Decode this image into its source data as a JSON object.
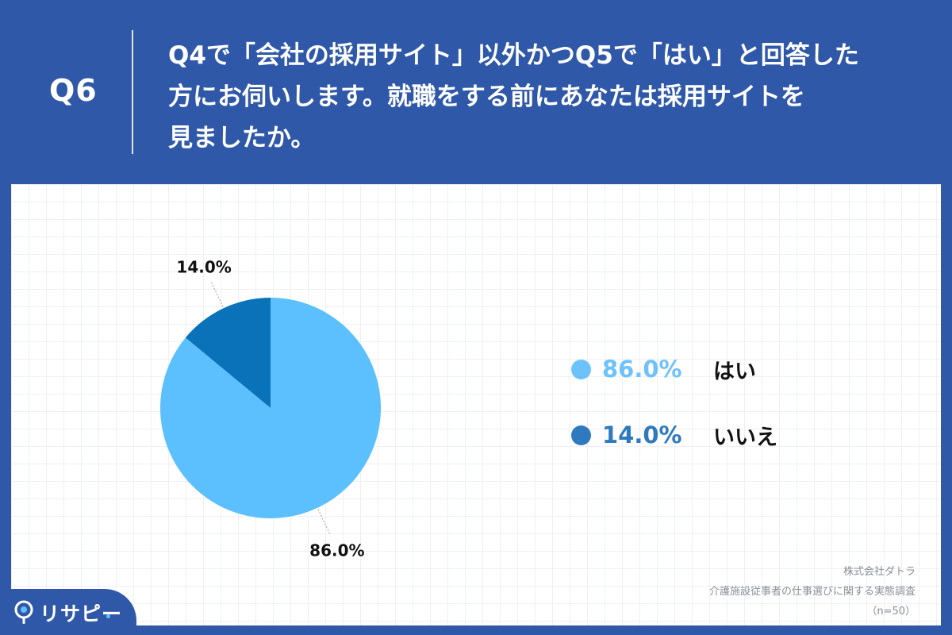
{
  "header": {
    "question_number": "Q6",
    "question_text": "Q4で「会社の採用サイト」以外かつQ5で「はい」と回答した\n方にお伺いします。就職をする前にあなたは採用サイトを\n見ましたか。"
  },
  "chart_data": {
    "type": "pie",
    "categories": [
      "はい",
      "いいえ"
    ],
    "values": [
      86.0,
      14.0
    ],
    "value_labels": [
      "86.0%",
      "14.0%"
    ],
    "colors": [
      "#5bc0fd",
      "#0a72b9"
    ],
    "legend_colors": [
      "#6ec2fb",
      "#2f79bf"
    ],
    "legend_placement": "right",
    "title": "",
    "grid": true
  },
  "source": {
    "company": "株式会社ダトラ",
    "survey": "介護施設従事者の仕事選びに関する実態調査",
    "sample": "（n=50）"
  },
  "logo": {
    "text": "リサピー"
  }
}
